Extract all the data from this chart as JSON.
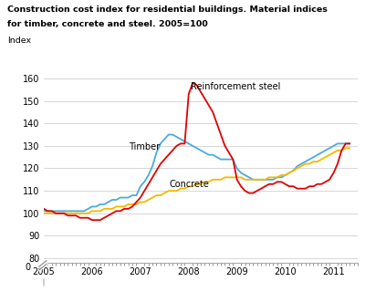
{
  "title_line1": "Construction cost index for residential buildings. Material indices",
  "title_line2": "for timber, concrete and steel. 2005=100",
  "index_label": "Index",
  "background_color": "#ffffff",
  "grid_color": "#d0d0d0",
  "xlim": [
    2005.0,
    2011.5
  ],
  "ylim": [
    78,
    165
  ],
  "yticks": [
    80,
    90,
    100,
    110,
    120,
    130,
    140,
    150,
    160
  ],
  "xticks": [
    2005,
    2006,
    2007,
    2008,
    2009,
    2010,
    2011
  ],
  "timber_color": "#4aabdc",
  "concrete_color": "#f5b800",
  "steel_color": "#e00000",
  "timber_label": "Timber",
  "concrete_label": "Concrete",
  "steel_label": "Reinforcement steel",
  "timber_x": [
    2005.0,
    2005.083,
    2005.167,
    2005.25,
    2005.333,
    2005.417,
    2005.5,
    2005.583,
    2005.667,
    2005.75,
    2005.833,
    2005.917,
    2006.0,
    2006.083,
    2006.167,
    2006.25,
    2006.333,
    2006.417,
    2006.5,
    2006.583,
    2006.667,
    2006.75,
    2006.833,
    2006.917,
    2007.0,
    2007.083,
    2007.167,
    2007.25,
    2007.333,
    2007.417,
    2007.5,
    2007.583,
    2007.667,
    2007.75,
    2007.833,
    2007.917,
    2008.0,
    2008.083,
    2008.167,
    2008.25,
    2008.333,
    2008.417,
    2008.5,
    2008.583,
    2008.667,
    2008.75,
    2008.833,
    2008.917,
    2009.0,
    2009.083,
    2009.167,
    2009.25,
    2009.333,
    2009.417,
    2009.5,
    2009.583,
    2009.667,
    2009.75,
    2009.833,
    2009.917,
    2010.0,
    2010.083,
    2010.167,
    2010.25,
    2010.333,
    2010.417,
    2010.5,
    2010.583,
    2010.667,
    2010.75,
    2010.833,
    2010.917,
    2011.0,
    2011.083,
    2011.167,
    2011.25,
    2011.333
  ],
  "timber_y": [
    101,
    101,
    101,
    101,
    101,
    101,
    101,
    101,
    101,
    101,
    101,
    102,
    103,
    103,
    104,
    104,
    105,
    106,
    106,
    107,
    107,
    107,
    108,
    108,
    112,
    114,
    117,
    121,
    127,
    131,
    133,
    135,
    135,
    134,
    133,
    132,
    131,
    130,
    129,
    128,
    127,
    126,
    126,
    125,
    124,
    124,
    124,
    124,
    120,
    118,
    117,
    116,
    115,
    115,
    115,
    115,
    115,
    115,
    116,
    116,
    117,
    118,
    119,
    121,
    122,
    123,
    124,
    125,
    126,
    127,
    128,
    129,
    130,
    131,
    131,
    131,
    131
  ],
  "concrete_x": [
    2005.0,
    2005.083,
    2005.167,
    2005.25,
    2005.333,
    2005.417,
    2005.5,
    2005.583,
    2005.667,
    2005.75,
    2005.833,
    2005.917,
    2006.0,
    2006.083,
    2006.167,
    2006.25,
    2006.333,
    2006.417,
    2006.5,
    2006.583,
    2006.667,
    2006.75,
    2006.833,
    2006.917,
    2007.0,
    2007.083,
    2007.167,
    2007.25,
    2007.333,
    2007.417,
    2007.5,
    2007.583,
    2007.667,
    2007.75,
    2007.833,
    2007.917,
    2008.0,
    2008.083,
    2008.167,
    2008.25,
    2008.333,
    2008.417,
    2008.5,
    2008.583,
    2008.667,
    2008.75,
    2008.833,
    2008.917,
    2009.0,
    2009.083,
    2009.167,
    2009.25,
    2009.333,
    2009.417,
    2009.5,
    2009.583,
    2009.667,
    2009.75,
    2009.833,
    2009.917,
    2010.0,
    2010.083,
    2010.167,
    2010.25,
    2010.333,
    2010.417,
    2010.5,
    2010.583,
    2010.667,
    2010.75,
    2010.833,
    2010.917,
    2011.0,
    2011.083,
    2011.167,
    2011.25,
    2011.333
  ],
  "concrete_y": [
    100,
    100,
    100,
    100,
    100,
    100,
    100,
    100,
    100,
    100,
    100,
    100,
    101,
    101,
    101,
    102,
    102,
    102,
    103,
    103,
    103,
    104,
    104,
    104,
    105,
    105,
    106,
    107,
    108,
    108,
    109,
    110,
    110,
    110,
    111,
    111,
    112,
    112,
    113,
    113,
    114,
    114,
    115,
    115,
    115,
    116,
    116,
    116,
    116,
    116,
    115,
    115,
    115,
    115,
    115,
    115,
    116,
    116,
    116,
    117,
    117,
    118,
    119,
    120,
    121,
    122,
    122,
    123,
    123,
    124,
    125,
    126,
    127,
    128,
    128,
    129,
    129
  ],
  "steel_x": [
    2005.0,
    2005.083,
    2005.167,
    2005.25,
    2005.333,
    2005.417,
    2005.5,
    2005.583,
    2005.667,
    2005.75,
    2005.833,
    2005.917,
    2006.0,
    2006.083,
    2006.167,
    2006.25,
    2006.333,
    2006.417,
    2006.5,
    2006.583,
    2006.667,
    2006.75,
    2006.833,
    2006.917,
    2007.0,
    2007.083,
    2007.167,
    2007.25,
    2007.333,
    2007.417,
    2007.5,
    2007.583,
    2007.667,
    2007.75,
    2007.833,
    2007.917,
    2008.0,
    2008.083,
    2008.167,
    2008.25,
    2008.333,
    2008.417,
    2008.5,
    2008.583,
    2008.667,
    2008.75,
    2008.833,
    2008.917,
    2009.0,
    2009.083,
    2009.167,
    2009.25,
    2009.333,
    2009.417,
    2009.5,
    2009.583,
    2009.667,
    2009.75,
    2009.833,
    2009.917,
    2010.0,
    2010.083,
    2010.167,
    2010.25,
    2010.333,
    2010.417,
    2010.5,
    2010.583,
    2010.667,
    2010.75,
    2010.833,
    2010.917,
    2011.0,
    2011.083,
    2011.167,
    2011.25,
    2011.333
  ],
  "steel_y": [
    102,
    101,
    101,
    100,
    100,
    100,
    99,
    99,
    99,
    98,
    98,
    98,
    97,
    97,
    97,
    98,
    99,
    100,
    101,
    101,
    102,
    102,
    103,
    105,
    107,
    110,
    113,
    116,
    119,
    122,
    124,
    126,
    128,
    130,
    131,
    131,
    153,
    158,
    157,
    154,
    151,
    148,
    145,
    140,
    135,
    130,
    127,
    124,
    115,
    112,
    110,
    109,
    109,
    110,
    111,
    112,
    113,
    113,
    114,
    114,
    113,
    112,
    112,
    111,
    111,
    111,
    112,
    112,
    113,
    113,
    114,
    115,
    118,
    122,
    128,
    131,
    131
  ]
}
